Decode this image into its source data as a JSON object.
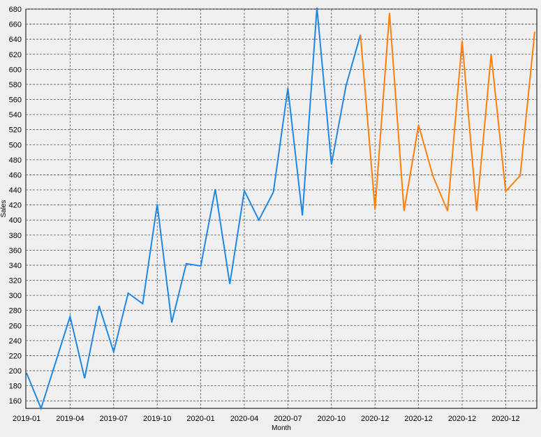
{
  "chart_data": {
    "type": "line",
    "xlabel": "Month",
    "ylabel": "Sales",
    "ylim": [
      150,
      680
    ],
    "yticks": [
      160,
      180,
      200,
      220,
      240,
      260,
      280,
      300,
      320,
      340,
      360,
      380,
      400,
      420,
      440,
      460,
      480,
      500,
      520,
      540,
      560,
      580,
      600,
      620,
      640,
      660,
      680
    ],
    "xtick_labels": [
      "2019-01",
      "2019-04",
      "2019-07",
      "2019-10",
      "2020-01",
      "2020-04",
      "2020-07",
      "2020-10",
      "2020-12",
      "2020-12",
      "2020-12",
      "2020-12"
    ],
    "grid": true,
    "series": [
      {
        "color": "#1e88e5",
        "values": [
          197,
          150,
          211,
          272,
          190,
          286,
          225,
          303,
          289,
          421,
          264,
          342,
          339,
          441,
          315,
          439,
          400,
          437,
          575,
          406,
          682,
          474,
          578,
          646
        ]
      },
      {
        "color": "#ff7f0e",
        "values": [
          646,
          414,
          675,
          412,
          526,
          458,
          412,
          638,
          412,
          620,
          438,
          459,
          650
        ]
      }
    ]
  }
}
